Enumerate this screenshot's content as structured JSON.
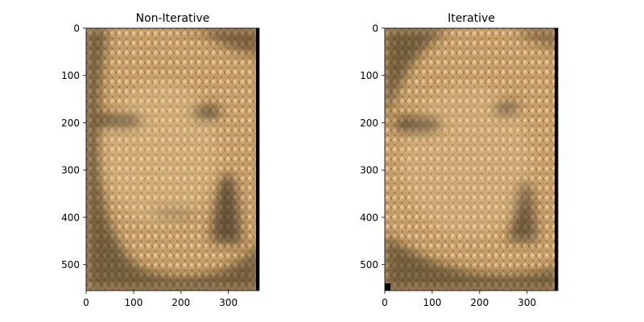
{
  "chart_data": [
    {
      "type": "image",
      "title": "Non-Iterative",
      "xlabel": "",
      "ylabel": "",
      "x_ticks": [
        0,
        100,
        200,
        300
      ],
      "y_ticks": [
        0,
        100,
        200,
        300,
        400,
        500
      ],
      "xlim": [
        0,
        365
      ],
      "ylim": [
        555,
        0
      ],
      "image": {
        "palette": {
          "dark": "#3a2d1c",
          "mid": "#8a6a42",
          "light": "#d9b27c",
          "highlight": "#ecd2a6"
        },
        "right_black_border": true,
        "bottom_left_black_corner": false
      }
    },
    {
      "type": "image",
      "title": "Iterative",
      "xlabel": "",
      "ylabel": "",
      "x_ticks": [
        0,
        100,
        200,
        300
      ],
      "y_ticks": [
        0,
        100,
        200,
        300,
        400,
        500
      ],
      "xlim": [
        0,
        365
      ],
      "ylim": [
        555,
        0
      ],
      "image": {
        "palette": {
          "dark": "#3b2e1e",
          "mid": "#8c6d45",
          "light": "#d5ae78",
          "highlight": "#e8cc9d"
        },
        "right_black_border": true,
        "bottom_left_black_corner": true
      }
    }
  ]
}
